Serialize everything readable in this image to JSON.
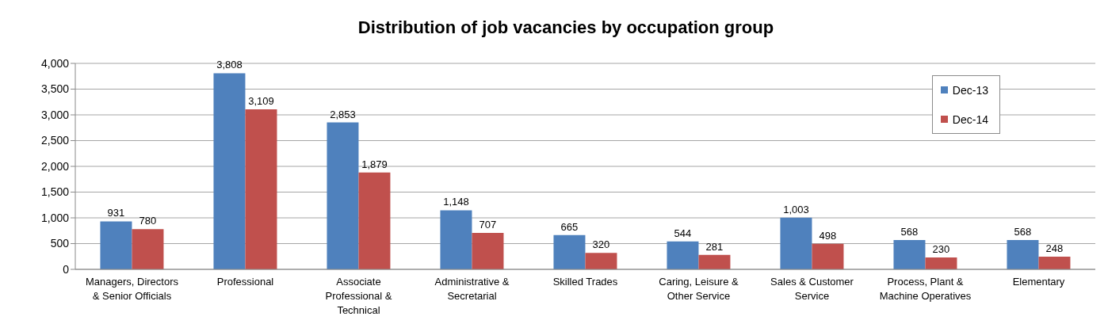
{
  "chart_data": {
    "type": "bar",
    "title": "Distribution of job vacancies by occupation group",
    "categories": [
      "Managers, Directors & Senior Officials",
      "Professional",
      "Associate Professional & Technical",
      "Administrative & Secretarial",
      "Skilled Trades",
      "Caring, Leisure & Other Service",
      "Sales & Customer Service",
      "Process, Plant & Machine Operatives",
      "Elementary"
    ],
    "series": [
      {
        "name": "Dec-13",
        "color": "#4f81bd",
        "values": [
          931,
          3808,
          2853,
          1148,
          665,
          544,
          1003,
          568,
          568
        ],
        "value_labels": [
          "931",
          "3,808",
          "2,853",
          "1,148",
          "665",
          "544",
          "1,003",
          "568",
          "568"
        ]
      },
      {
        "name": "Dec-14",
        "color": "#c0504d",
        "values": [
          780,
          3109,
          1879,
          707,
          320,
          281,
          498,
          230,
          248
        ],
        "value_labels": [
          "780",
          "3,109",
          "1,879",
          "707",
          "320",
          "281",
          "498",
          "230",
          "248"
        ]
      }
    ],
    "ylim": [
      0,
      4000
    ],
    "yticks": [
      0,
      500,
      {
        "value": 1000,
        "label": "1,000"
      },
      {
        "value": 1500,
        "label": "1,500"
      },
      {
        "value": 2000,
        "label": "2,000"
      },
      {
        "value": 2500,
        "label": "2,500"
      },
      {
        "value": 3000,
        "label": "3,000"
      },
      {
        "value": 3500,
        "label": "3,500"
      },
      {
        "value": 4000,
        "label": "4,000"
      }
    ],
    "grid": "y",
    "legend": "top right"
  }
}
